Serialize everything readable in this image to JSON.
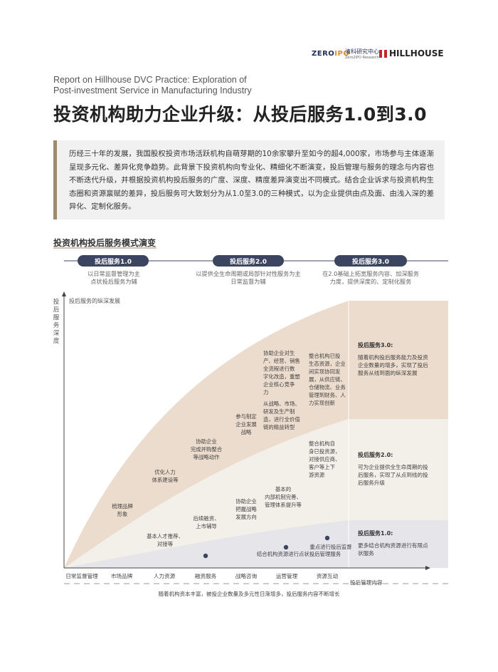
{
  "logos": {
    "zero_ipo_a": "ZERO",
    "zero_ipo_b": "IPO",
    "qingke_cn": "清科研究中心",
    "qingke_en": "Zero2IPO Research",
    "hillhouse": "HILLHOUSE"
  },
  "title_en_line1": "Report on Hillhouse DVC Practice: Exploration of",
  "title_en_line2": "Post-investment Service in Manufacturing Industry",
  "title_cn": "投资机构助力企业升级：从投后服务1.0到3.0",
  "intro_text": "历经三十年的发展，我国股权投资市场活跃机构自萌芽期的10余家攀升至如今的超4,000家，市场参与主体逐渐呈现多元化、差异化竞争趋势。此背景下投资机构向专业化、精细化不断演变，投后管理与服务的理念与内容也不断迭代升级，并根据投资机构投后服务的广度、深度、精度差异演变出不同模式。结合企业诉求与投资机构生态圈和资源禀赋的差异，投后服务可大致划分为从1.0至3.0的三种模式，以为企业提供由点及面、由浅入深的差异化、定制化服务。",
  "section_title": "投资机构投后服务模式演变",
  "stages": [
    {
      "label": "投后服务1.0",
      "desc_l1": "以日常监督管理为主",
      "desc_l2": "点状投后服务为辅"
    },
    {
      "label": "投后服务2.0",
      "desc_l1": "以提供全生命周期或局部针对性服务为主",
      "desc_l2": "日常监督为辅"
    },
    {
      "label": "投后服务3.0",
      "desc_l1": "在2.0基础上拓宽服务内容、加深服务",
      "desc_l2": "力度，提供深度的、定制化服务"
    }
  ],
  "y_axis_label": "投后服务深度",
  "y_axis_chars": [
    "投",
    "后",
    "服",
    "务",
    "深",
    "度"
  ],
  "vertical_dev_label": "投后服务的纵深发展",
  "x_axis_label": "投后管理内容",
  "x_categories": [
    "日常监督管理",
    "市场品牌",
    "人力资源",
    "融资服务",
    "战略咨询",
    "运营管理",
    "资源互动"
  ],
  "annotations": {
    "brand": [
      "梳理品牌",
      "形象"
    ],
    "hr_recommend": [
      "基本人才推荐、",
      "对接等"
    ],
    "hr_system": [
      "优化人力",
      "体系建设等"
    ],
    "fin_followup": [
      "后续融资、",
      "上市辅导"
    ],
    "fin_merge": [
      "协助企业",
      "完成并购整合",
      "等战略动作"
    ],
    "strat_direction": [
      "协助企业",
      "把握战略",
      "发展方向"
    ],
    "strat_plan": [
      "参与制定",
      "企业发展",
      "战略"
    ],
    "ops_basic": [
      "基本的",
      "内部机制完善、",
      "管理体系提升等"
    ],
    "ops_digital": [
      "协助企业对生",
      "产、经营、销售",
      "全流程进行数",
      "字化改造，重塑",
      "企业核心竞争",
      "力"
    ],
    "ops_chain": [
      "从战略、市场、",
      "研发及生产制",
      "造，进行全价值",
      "链的精益转型"
    ],
    "res_upstream": [
      "整合机构自",
      "身已投资源，",
      "对接供应商、",
      "客户等上下",
      "游资源"
    ],
    "res_ecosystem": [
      "整合机构已投",
      "生态资源，企业",
      "间实现协同发",
      "展，从供应链、",
      "仓储物流、业务",
      "管理到财务、人",
      "力实现创新"
    ],
    "res_key_supervision": "重点进行投后监督",
    "res_combine": "结合机构资源进行点状投后管理服务"
  },
  "right_notes": [
    {
      "title": "投后服务3.0:",
      "body": [
        "随着机构投后服务能力及投资",
        "企业数量的增多，实现了投后",
        "服务从线到面的纵深发展"
      ]
    },
    {
      "title": "投后服务2.0:",
      "body": [
        "可为企业提供全生命周期的投",
        "后服务，实现了从点到线的投",
        "后服务升级"
      ]
    },
    {
      "title": "投后服务1.0:",
      "body": [
        "更多结合机构资源进行有限点",
        "状服务"
      ]
    }
  ],
  "footnote": "随着机构资本丰富，被投企业数量及多元性日渐增多，投后服务内容不断增长",
  "colors": {
    "stage_pill": "#3b4560",
    "area_3": "#ebdccd",
    "area_2": "#f3efe9",
    "area_1": "#e6e6ea",
    "text": "#333333",
    "accent_bar": "#a08a6d"
  }
}
